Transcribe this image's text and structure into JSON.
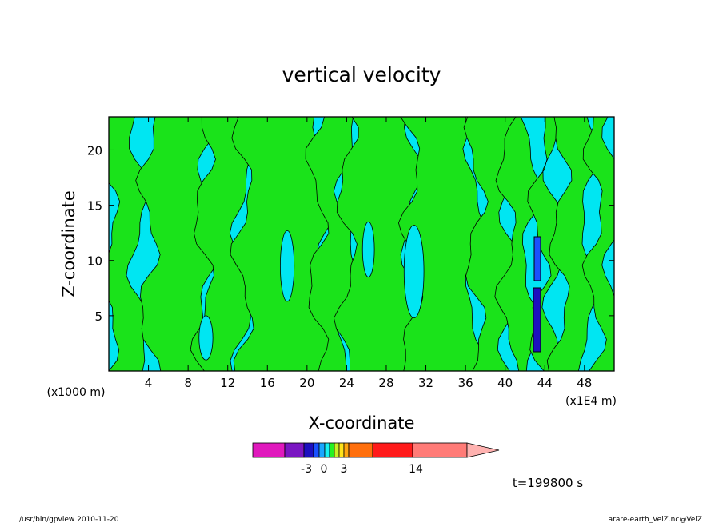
{
  "chart_data": {
    "type": "heatmap",
    "title": "vertical velocity",
    "xlabel": "X-coordinate",
    "ylabel": "Z-coordinate",
    "x_unit_left": "(x1000 m)",
    "x_unit_right": "(x1E4 m)",
    "xlim": [
      0,
      51
    ],
    "ylim": [
      0,
      23
    ],
    "x_ticks": [
      "4",
      "8",
      "12",
      "16",
      "20",
      "24",
      "28",
      "32",
      "36",
      "40",
      "44",
      "48"
    ],
    "x_tick_values": [
      4,
      8,
      12,
      16,
      20,
      24,
      28,
      32,
      36,
      40,
      44,
      48
    ],
    "y_ticks": [
      "5",
      "10",
      "15",
      "20"
    ],
    "y_tick_values": [
      5,
      10,
      15,
      20
    ],
    "time_label": "t=199800 s",
    "colorbar": {
      "colors": [
        "#e019bd",
        "#7a16c2",
        "#1d0fbf",
        "#1a52ff",
        "#1aa6ff",
        "#18f2f2",
        "#24f224",
        "#c8f225",
        "#ffe21a",
        "#ffa50f",
        "#ff6f0c",
        "#ff1a1a",
        "#ff7b77",
        "#ffb2b0"
      ],
      "tick_labels": [
        "-3",
        "0",
        "3",
        "14"
      ]
    },
    "field_colors": {
      "positive": "#1ae31a",
      "negative": "#00e6f2"
    },
    "updraft_columns_x": [
      1.5,
      7,
      11.5,
      17,
      22,
      27,
      31,
      35,
      39,
      42,
      44,
      47
    ]
  },
  "footer": {
    "left": "/usr/bin/gpview  2010-11-20",
    "right": "arare-earth_VelZ.nc@VelZ"
  }
}
